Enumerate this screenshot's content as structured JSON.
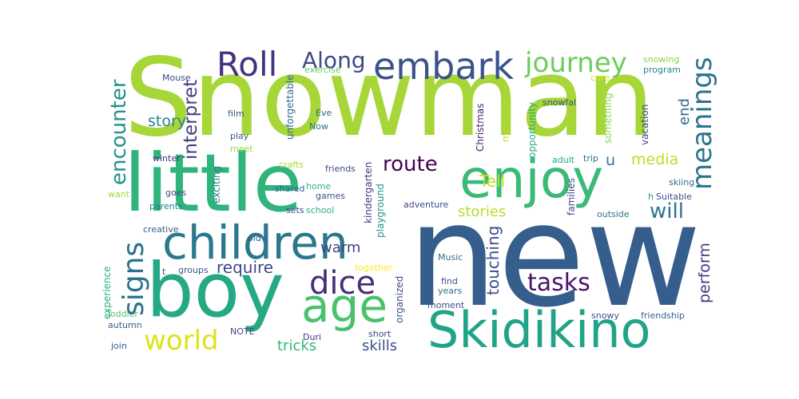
{
  "words": [
    {
      "id": "snowman",
      "text": "Snowman",
      "color": "#a6d637"
    },
    {
      "id": "new",
      "text": "new",
      "color": "#355e8d"
    },
    {
      "id": "little",
      "text": "little",
      "color": "#2fb47c"
    },
    {
      "id": "boy",
      "text": "boy",
      "color": "#25a984"
    },
    {
      "id": "children",
      "text": "children",
      "color": "#2a788e"
    },
    {
      "id": "enjoy",
      "text": "enjoy",
      "color": "#3aba76"
    },
    {
      "id": "age",
      "text": "age",
      "color": "#4ac16d"
    },
    {
      "id": "skidikino",
      "text": "Skidikino",
      "color": "#20a386"
    },
    {
      "id": "embark",
      "text": "embark",
      "color": "#3b528b"
    },
    {
      "id": "roll",
      "text": "Roll",
      "color": "#46327e"
    },
    {
      "id": "journey",
      "text": "journey",
      "color": "#6ccd5a"
    },
    {
      "id": "along",
      "text": "Along",
      "color": "#3e4989"
    },
    {
      "id": "dice",
      "text": "dice",
      "color": "#472d7b"
    },
    {
      "id": "signs",
      "text": "signs",
      "color": "#2c728e"
    },
    {
      "id": "world",
      "text": "world",
      "color": "#dde318"
    },
    {
      "id": "meanings",
      "text": "meanings",
      "color": "#2c738e"
    },
    {
      "id": "encounter",
      "text": "encounter",
      "color": "#21918c"
    },
    {
      "id": "tasks",
      "text": "tasks",
      "color": "#481668"
    },
    {
      "id": "route",
      "text": "route",
      "color": "#440154"
    },
    {
      "id": "will",
      "text": "will",
      "color": "#2d718e"
    },
    {
      "id": "interpret",
      "text": "interpret",
      "color": "#433e85"
    },
    {
      "id": "story",
      "text": "story",
      "color": "#26828e"
    },
    {
      "id": "tell",
      "text": "Tell",
      "color": "#bddf26"
    },
    {
      "id": "media",
      "text": "media",
      "color": "#bade28"
    },
    {
      "id": "end",
      "text": "end",
      "color": "#31678e"
    },
    {
      "id": "stories",
      "text": "stories",
      "color": "#b5de2b"
    },
    {
      "id": "require",
      "text": "require",
      "color": "#3f4788"
    },
    {
      "id": "warm",
      "text": "warm",
      "color": "#414287"
    },
    {
      "id": "touching",
      "text": "touching",
      "color": "#3c4f8a"
    },
    {
      "id": "perform",
      "text": "perform",
      "color": "#453781"
    },
    {
      "id": "skills",
      "text": "skills",
      "color": "#3b518b"
    },
    {
      "id": "tricks",
      "text": "tricks",
      "color": "#35b779"
    },
    {
      "id": "u",
      "text": "u",
      "color": "#2a768e"
    },
    {
      "id": "mouse",
      "text": "Mouse",
      "color": "#3e4989"
    },
    {
      "id": "film",
      "text": "film",
      "color": "#38588c"
    },
    {
      "id": "play",
      "text": "play",
      "color": "#39568c"
    },
    {
      "id": "meet",
      "text": "meet",
      "color": "#95d840"
    },
    {
      "id": "eve",
      "text": "Eve",
      "color": "#31688e"
    },
    {
      "id": "now",
      "text": "Now",
      "color": "#2c718e"
    },
    {
      "id": "exercise",
      "text": "exercise",
      "color": "#67cc5c"
    },
    {
      "id": "unforgettable",
      "text": "unforgettable",
      "color": "#31688e"
    },
    {
      "id": "christmas",
      "text": "Christmas",
      "color": "#482173"
    },
    {
      "id": "mornings",
      "text": "mornings",
      "color": "#b8de29"
    },
    {
      "id": "opportunity",
      "text": "opportunity",
      "color": "#27ad81"
    },
    {
      "id": "snowfal",
      "text": "snowfal",
      "color": "#3b528b"
    },
    {
      "id": "something",
      "text": "something",
      "color": "#8bd646"
    },
    {
      "id": "vacation",
      "text": "vacation",
      "color": "#3e4a89"
    },
    {
      "id": "snowing",
      "text": "snowing",
      "color": "#8ed645"
    },
    {
      "id": "program",
      "text": "program",
      "color": "#26828e"
    },
    {
      "id": "care",
      "text": "care",
      "color": "#d2e21b"
    },
    {
      "id": "winter",
      "text": "winter",
      "color": "#46307e"
    },
    {
      "id": "crafts",
      "text": "crafts",
      "color": "#a5db36"
    },
    {
      "id": "friends",
      "text": "friends",
      "color": "#3f4889"
    },
    {
      "id": "kindergarten",
      "text": "kindergarten",
      "color": "#443983"
    },
    {
      "id": "adult",
      "text": "adult",
      "color": "#22a785"
    },
    {
      "id": "trip",
      "text": "trip",
      "color": "#2f6c8e"
    },
    {
      "id": "want",
      "text": "want",
      "color": "#a2da37"
    },
    {
      "id": "goes",
      "text": "goes",
      "color": "#3e4989"
    },
    {
      "id": "exciting",
      "text": "exciting",
      "color": "#277f8e"
    },
    {
      "id": "shared",
      "text": "shared",
      "color": "#33638d"
    },
    {
      "id": "home",
      "text": "home",
      "color": "#35b779"
    },
    {
      "id": "games",
      "text": "games",
      "color": "#3b518b"
    },
    {
      "id": "playground",
      "text": "playground",
      "color": "#1f968b"
    },
    {
      "id": "families",
      "text": "families",
      "color": "#3d4d8a"
    },
    {
      "id": "skiing",
      "text": "skiing",
      "color": "#2e6f8e"
    },
    {
      "id": "suitable",
      "text": "Suitable",
      "color": "#3e4c8a"
    },
    {
      "id": "h",
      "text": "h",
      "color": "#21918c"
    },
    {
      "id": "parents",
      "text": "parents",
      "color": "#26828e"
    },
    {
      "id": "sets",
      "text": "sets",
      "color": "#3f4889"
    },
    {
      "id": "school",
      "text": "school",
      "color": "#2ab07f"
    },
    {
      "id": "adventure",
      "text": "adventure",
      "color": "#3e4989"
    },
    {
      "id": "outside",
      "text": "outside",
      "color": "#2a768e"
    },
    {
      "id": "creative",
      "text": "creative",
      "color": "#365c8d"
    },
    {
      "id": "old",
      "text": "old",
      "color": "#3b528b"
    },
    {
      "id": "experience",
      "text": "experience",
      "color": "#29af7f"
    },
    {
      "id": "t",
      "text": "t",
      "color": "#3f4889"
    },
    {
      "id": "groups",
      "text": "groups",
      "color": "#39568c"
    },
    {
      "id": "together",
      "text": "together",
      "color": "#fde725"
    },
    {
      "id": "organized",
      "text": "organized",
      "color": "#3d4e8a"
    },
    {
      "id": "music",
      "text": "Music",
      "color": "#2e6e8e"
    },
    {
      "id": "find",
      "text": "find",
      "color": "#3b518b"
    },
    {
      "id": "years",
      "text": "years",
      "color": "#2d708e"
    },
    {
      "id": "moment",
      "text": "moment",
      "color": "#3e4c8a"
    },
    {
      "id": "toddler",
      "text": "Toddler",
      "color": "#4ec36b"
    },
    {
      "id": "autumn",
      "text": "autumn",
      "color": "#355e8d"
    },
    {
      "id": "note",
      "text": "NOTE",
      "color": "#3f4788"
    },
    {
      "id": "duri",
      "text": "Duri",
      "color": "#463480"
    },
    {
      "id": "short",
      "text": "short",
      "color": "#414287"
    },
    {
      "id": "snowy",
      "text": "snowy",
      "color": "#3b518b"
    },
    {
      "id": "friendship",
      "text": "friendship",
      "color": "#355f8d"
    },
    {
      "id": "join",
      "text": "join",
      "color": "#365d8d"
    }
  ]
}
